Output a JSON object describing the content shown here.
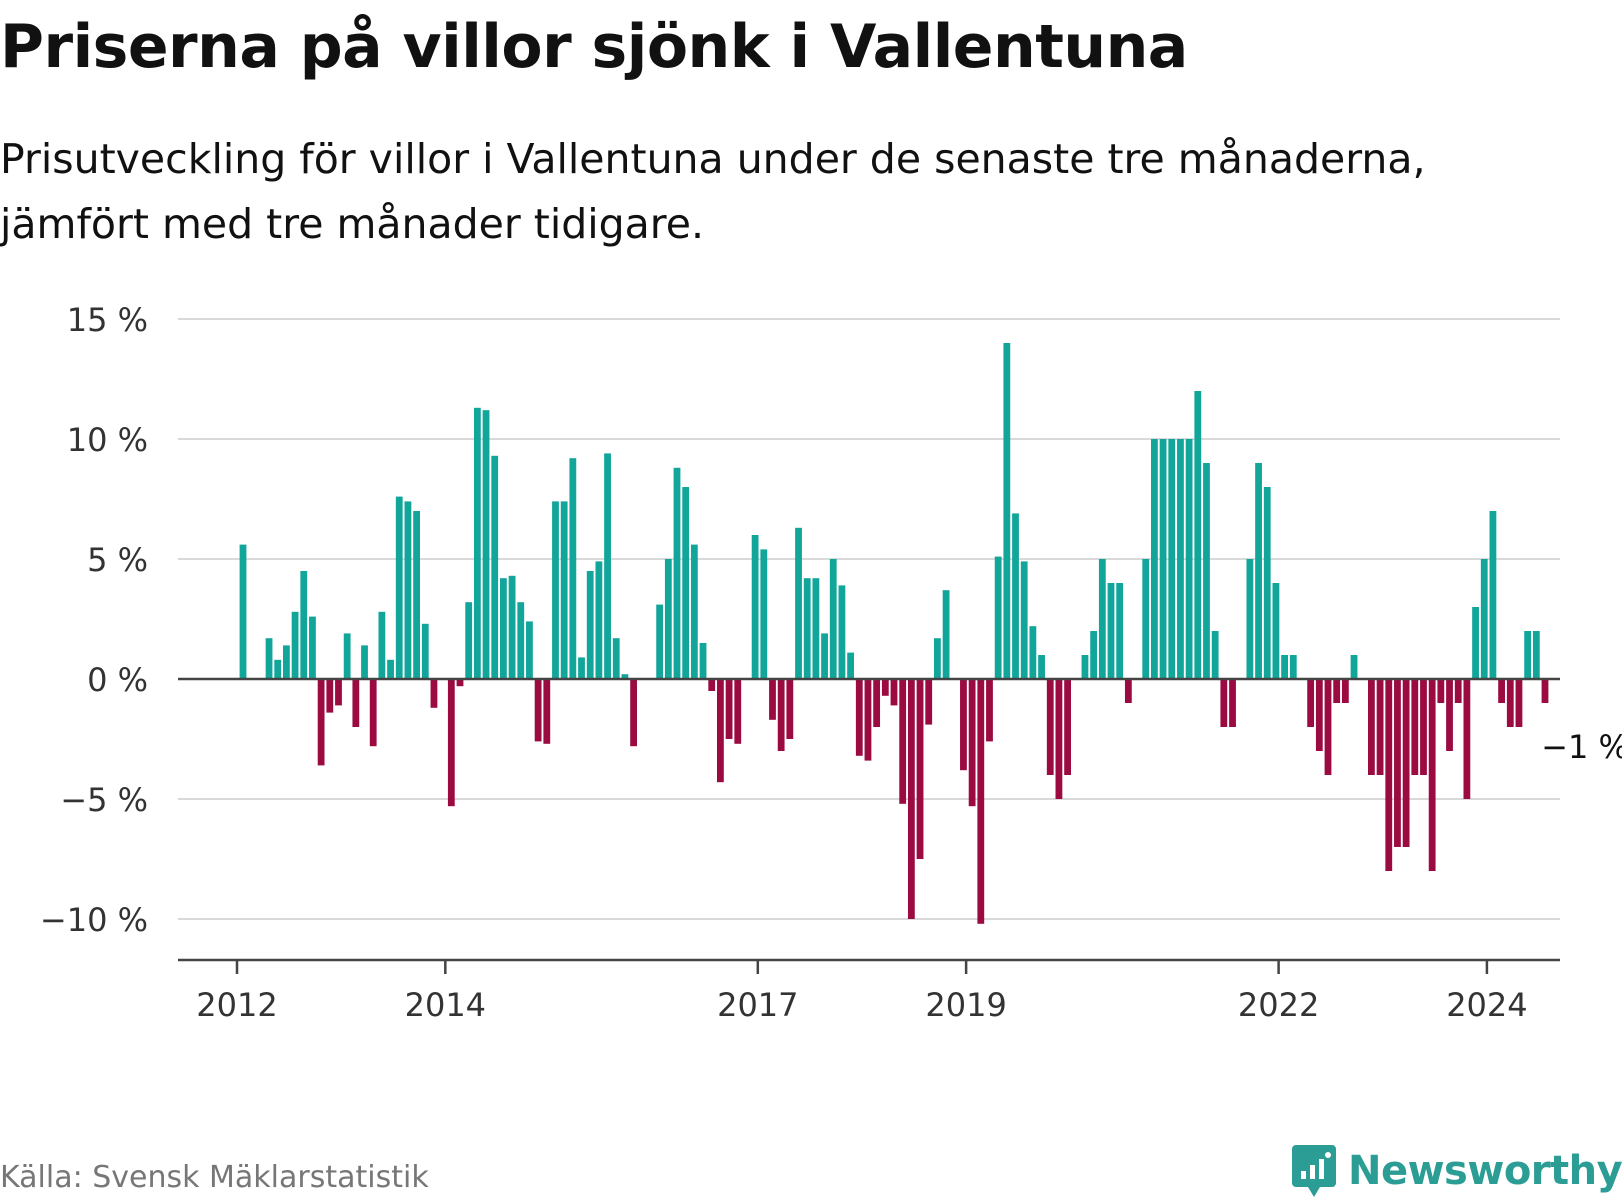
{
  "title": "Priserna på villor sjönk i Vallentuna",
  "subtitle_lines": [
    "Prisutveckling för villor i Vallentuna under de senaste tre månaderna,",
    "jämfört med tre månader tidigare."
  ],
  "source": "Källa: Svensk Mäklarstatistik",
  "brand": {
    "name": "Newsworthy",
    "icon": "newsworthy-logo-icon"
  },
  "colors": {
    "positive": "#12a59a",
    "negative": "#9b0a41",
    "grid": "#d9d9d9",
    "axis": "#444444"
  },
  "chart_data": {
    "type": "bar",
    "unit": "%",
    "x_start_year": 2012,
    "x_start_month": 1,
    "values": [
      5.6,
      null,
      null,
      1.7,
      0.8,
      1.4,
      2.8,
      4.5,
      2.6,
      -3.6,
      -1.4,
      -1.1,
      1.9,
      -2.0,
      1.4,
      -2.8,
      2.8,
      0.8,
      7.6,
      7.4,
      7.0,
      2.3,
      -1.2,
      null,
      -5.3,
      -0.3,
      3.2,
      11.3,
      11.2,
      9.3,
      4.2,
      4.3,
      3.2,
      2.4,
      -2.6,
      -2.7,
      7.4,
      7.4,
      9.2,
      0.9,
      4.5,
      4.9,
      9.4,
      1.7,
      0.2,
      -2.8,
      null,
      null,
      3.1,
      5.0,
      8.8,
      8.0,
      5.6,
      1.5,
      -0.5,
      -4.3,
      -2.5,
      -2.7,
      null,
      6.0,
      5.4,
      -1.7,
      -3.0,
      -2.5,
      6.3,
      4.2,
      4.2,
      1.9,
      5.0,
      3.9,
      1.1,
      -3.2,
      -3.4,
      -2.0,
      -0.7,
      -1.1,
      -5.2,
      -10.0,
      -7.5,
      -1.9,
      1.7,
      3.7,
      null,
      -3.8,
      -5.3,
      -10.2,
      -2.6,
      5.1,
      14.0,
      6.9,
      4.9,
      2.2,
      1.0,
      -4.0,
      -5.0,
      -4.0,
      null,
      1.0,
      2.0,
      5.0,
      4.0,
      4.0,
      -1.0,
      null,
      5.0,
      10.0,
      10.0,
      10.0,
      10.0,
      10.0,
      12.0,
      9.0,
      2.0,
      -2.0,
      -2.0,
      null,
      5.0,
      9.0,
      8.0,
      4.0,
      1.0,
      1.0,
      null,
      -2.0,
      -3.0,
      -4.0,
      -1.0,
      -1.0,
      1.0,
      null,
      -4.0,
      -4.0,
      -8.0,
      -7.0,
      -7.0,
      -4.0,
      -4.0,
      -8.0,
      -1.0,
      -3.0,
      -1.0,
      -5.0,
      3.0,
      5.0,
      7.0,
      -1.0,
      -2.0,
      -2.0,
      2.0,
      2.0,
      -1.0
    ],
    "x_ticks": [
      {
        "label": "2012",
        "year": 2012
      },
      {
        "label": "2014",
        "year": 2014
      },
      {
        "label": "2017",
        "year": 2017
      },
      {
        "label": "2019",
        "year": 2019
      },
      {
        "label": "2022",
        "year": 2022
      },
      {
        "label": "2024",
        "year": 2024
      }
    ],
    "y_ticks": [
      {
        "label": "15 %",
        "value": 15
      },
      {
        "label": "10 %",
        "value": 10
      },
      {
        "label": "5 %",
        "value": 5
      },
      {
        "label": "0 %",
        "value": 0
      },
      {
        "label": "−5 %",
        "value": -5
      },
      {
        "label": "−10 %",
        "value": -10
      }
    ],
    "ylim": [
      -11.5,
      15
    ],
    "annotation": {
      "label": "−1 %",
      "value": -1
    },
    "xlabel": "",
    "ylabel": ""
  }
}
